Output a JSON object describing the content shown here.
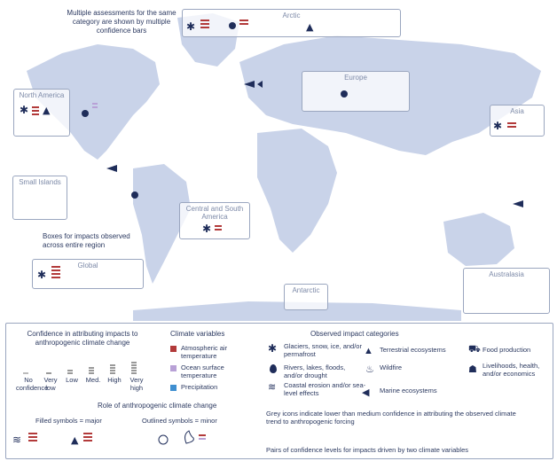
{
  "annotations": {
    "multiple_assessments": "Multiple assessments for the same category are shown by multiple confidence bars",
    "boxes_region": "Boxes for impacts observed across entire region"
  },
  "regions": {
    "arctic": "Arctic",
    "north_america": "North America",
    "europe": "Europe",
    "asia": "Asia",
    "small_islands": "Small Islands",
    "central_south_america": "Central and South America",
    "global": "Global",
    "australasia": "Australasia",
    "antarctic": "Antarctic"
  },
  "legend": {
    "confidence_title": "Confidence in attributing impacts to anthropogenic climate change",
    "confidence_levels": [
      "No confidence",
      "Very low",
      "Low",
      "Med.",
      "High",
      "Very high"
    ],
    "climate_variables_title": "Climate variables",
    "climate_variables": [
      {
        "label": "Atmospheric air temperature",
        "color": "#b23a3a"
      },
      {
        "label": "Ocean surface temperature",
        "color": "#b8a1d6"
      },
      {
        "label": "Precipitation",
        "color": "#3f8fd0"
      }
    ],
    "impact_title": "Observed impact categories",
    "impacts": [
      {
        "label": "Glaciers, snow, ice, and/or permafrost",
        "icon": "snowflake-icon"
      },
      {
        "label": "Rivers, lakes, floods, and/or drought",
        "icon": "water-drop-icon"
      },
      {
        "label": "Coastal erosion and/or sea-level effects",
        "icon": "wave-icon"
      },
      {
        "label": "Terrestrial ecosystems",
        "icon": "tree-icon"
      },
      {
        "label": "Wildfire",
        "icon": "fire-icon"
      },
      {
        "label": "Marine ecosystems",
        "icon": "fish-icon"
      },
      {
        "label": "Food production",
        "icon": "tractor-icon"
      },
      {
        "label": "Livelihoods, health, and/or economics",
        "icon": "people-icon"
      }
    ],
    "role_title": "Role of anthropogenic climate change",
    "filled": "Filled symbols = major",
    "outlined": "Outlined symbols = minor",
    "grey_note": "Grey icons indicate lower than medium confidence in attributing the observed climate trend to anthropogenic forcing",
    "pairs_note": "Pairs of confidence levels for impacts driven by two climate variables"
  },
  "colors": {
    "navy": "#1f2d5a",
    "land": "#c9d3e9",
    "red": "#b23a3a",
    "violet": "#b8a1d6",
    "blue": "#3f8fd0",
    "grey": "#a9a9a9"
  }
}
